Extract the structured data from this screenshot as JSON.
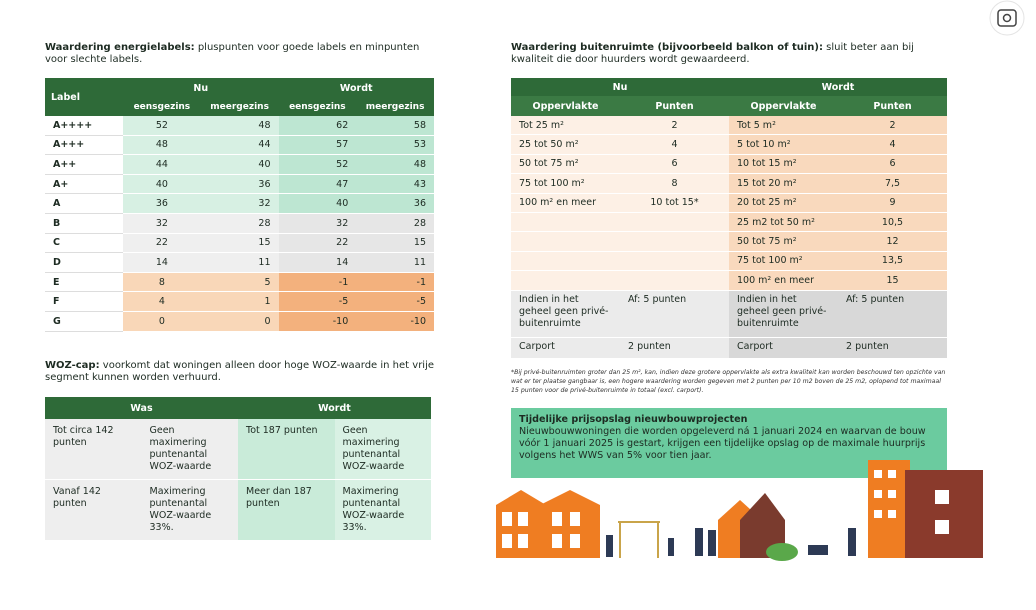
{
  "energy": {
    "title_bold": "Waardering energielabels:",
    "title_rest": "pluspunten voor goede labels en minpunten voor slechte labels.",
    "headers": {
      "label": "Label",
      "now": "Nu",
      "future": "Wordt",
      "sub": [
        "eensgezins",
        "meergezins",
        "eensgezins",
        "meergezins"
      ]
    },
    "rows": [
      [
        "A++++",
        52,
        48,
        62,
        58
      ],
      [
        "A+++",
        48,
        44,
        57,
        53
      ],
      [
        "A++",
        44,
        40,
        52,
        48
      ],
      [
        "A+",
        40,
        36,
        47,
        43
      ],
      [
        "A",
        36,
        32,
        40,
        36
      ],
      [
        "B",
        32,
        28,
        32,
        28
      ],
      [
        "C",
        22,
        15,
        22,
        15
      ],
      [
        "D",
        14,
        11,
        14,
        11
      ],
      [
        "E",
        8,
        5,
        -1,
        -1
      ],
      [
        "F",
        4,
        1,
        -5,
        -5
      ],
      [
        "G",
        0,
        0,
        -10,
        -10
      ]
    ]
  },
  "woz": {
    "title_bold": "WOZ-cap:",
    "title_rest": "voorkomt dat woningen alleen door hoge WOZ-waarde in het vrije segment kunnen worden verhuurd.",
    "headers": [
      "Was",
      "Wordt"
    ],
    "rows": [
      [
        "Tot circa 142 punten",
        "Geen maximering puntenantal WOZ-waarde",
        "Tot 187 punten",
        "Geen maximering puntenantal WOZ-waarde"
      ],
      [
        "Vanaf 142 punten",
        "Maximering puntenantal WOZ-waarde 33%.",
        "Meer dan 187 punten",
        "Maximering puntenantal WOZ-waarde 33%."
      ]
    ]
  },
  "outdoor": {
    "title_bold": "Waardering buitenruimte (bijvoorbeeld balkon of tuin):",
    "title_rest": "sluit beter aan bij kwaliteit die door huurders wordt gewaardeerd.",
    "headers": {
      "now": "Nu",
      "future": "Wordt",
      "sub": [
        "Oppervlakte",
        "Punten",
        "Oppervlakte",
        "Punten"
      ]
    },
    "now_rows": [
      [
        "Tot 25 m²",
        "2"
      ],
      [
        "25 tot 50 m²",
        "4"
      ],
      [
        "50 tot 75 m²",
        "6"
      ],
      [
        "75 tot 100 m²",
        "8"
      ],
      [
        "100 m² en meer",
        "10 tot 15*"
      ]
    ],
    "future_rows": [
      [
        "Tot 5 m²",
        "2"
      ],
      [
        "5 tot 10 m²",
        "4"
      ],
      [
        "10 tot 15 m²",
        "6"
      ],
      [
        "15 tot 20 m²",
        "7,5"
      ],
      [
        "20 tot 25 m²",
        "9"
      ],
      [
        "25 m2 tot 50 m²",
        "10,5"
      ],
      [
        "50 tot 75 m²",
        "12"
      ],
      [
        "75 tot 100 m²",
        "13,5"
      ],
      [
        "100 m² en meer",
        "15"
      ]
    ],
    "extra_rows": [
      [
        "Indien in het geheel geen privé-buitenruimte",
        "Af: 5 punten",
        "Indien in het geheel geen privé-buitenruimte",
        "Af: 5 punten"
      ],
      [
        "Carport",
        "2 punten",
        "Carport",
        "2 punten"
      ]
    ],
    "footnote": "*Bij privé-buitenruimten groter dan 25 m², kan, indien deze grotere oppervlakte als extra kwaliteit kan worden beschouwd ten opzichte van wat er ter plaatse gangbaar is, een hogere waardering worden gegeven met 2 punten per 10 m2 boven de 25 m2, oplopend tot maximaal 15 punten voor de privé-buitenruimte in totaal (excl. carport)."
  },
  "newbuild": {
    "title": "Tijdelijke prijsopslag nieuwbouwprojecten",
    "text": "Nieuwbouwwoningen die worden opgeleverd ná 1 januari 2024 en waarvan de bouw vóór 1 januari 2025 is gestart, krijgen een tijdelijke opslag op de maximale huurprijs volgens het WWS van 5% voor tien jaar."
  }
}
